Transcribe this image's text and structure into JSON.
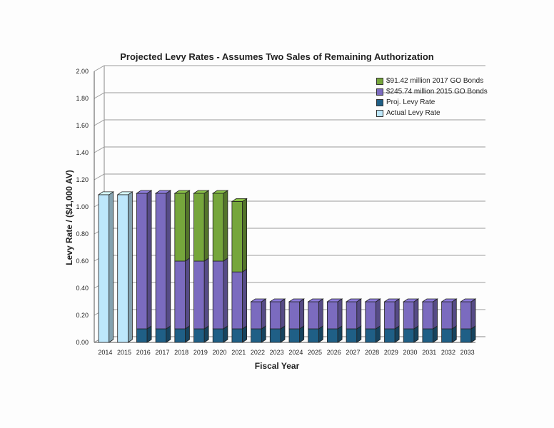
{
  "chart_data": {
    "type": "bar",
    "stacked": true,
    "title": "Projected Levy Rates - Assumes Two Sales of Remaining Authorization",
    "xlabel": "Fiscal Year",
    "ylabel": "Levy Rate / ($/1,000 AV)",
    "ylim": [
      0,
      2.0
    ],
    "yticks": [
      "0.00",
      "0.20",
      "0.40",
      "0.60",
      "0.80",
      "1.00",
      "1.20",
      "1.40",
      "1.60",
      "1.80",
      "2.00"
    ],
    "grid": true,
    "legend_position": "top-right",
    "categories": [
      "2014",
      "2015",
      "2016",
      "2017",
      "2018",
      "2019",
      "2020",
      "2021",
      "2022",
      "2023",
      "2024",
      "2025",
      "2026",
      "2027",
      "2028",
      "2029",
      "2030",
      "2031",
      "2032",
      "2033"
    ],
    "series": [
      {
        "name": "Actual Levy Rate",
        "color": "#bde7fb",
        "values": [
          1.09,
          1.09,
          0,
          0,
          0,
          0,
          0,
          0,
          0,
          0,
          0,
          0,
          0,
          0,
          0,
          0,
          0,
          0,
          0,
          0
        ]
      },
      {
        "name": "Proj. Levy Rate",
        "color": "#1f5f86",
        "values": [
          0,
          0,
          0.1,
          0.1,
          0.1,
          0.1,
          0.1,
          0.1,
          0.1,
          0.1,
          0.1,
          0.1,
          0.1,
          0.1,
          0.1,
          0.1,
          0.1,
          0.1,
          0.1,
          0.1
        ]
      },
      {
        "name": "$245.74 million 2015 GO Bonds",
        "color": "#7b6bbf",
        "values": [
          0,
          0,
          1.0,
          1.0,
          0.5,
          0.5,
          0.5,
          0.42,
          0.2,
          0.2,
          0.2,
          0.2,
          0.2,
          0.2,
          0.2,
          0.2,
          0.2,
          0.2,
          0.2,
          0.2
        ]
      },
      {
        "name": "$91.42 million 2017 GO Bonds",
        "color": "#76a63c",
        "values": [
          0,
          0,
          0,
          0,
          0.5,
          0.5,
          0.5,
          0.52,
          0,
          0,
          0,
          0,
          0,
          0,
          0,
          0,
          0,
          0,
          0,
          0
        ]
      }
    ],
    "legend_order": [
      "$91.42 million 2017 GO Bonds",
      "$245.74 million 2015 GO Bonds",
      "Proj. Levy Rate",
      "Actual Levy Rate"
    ]
  }
}
